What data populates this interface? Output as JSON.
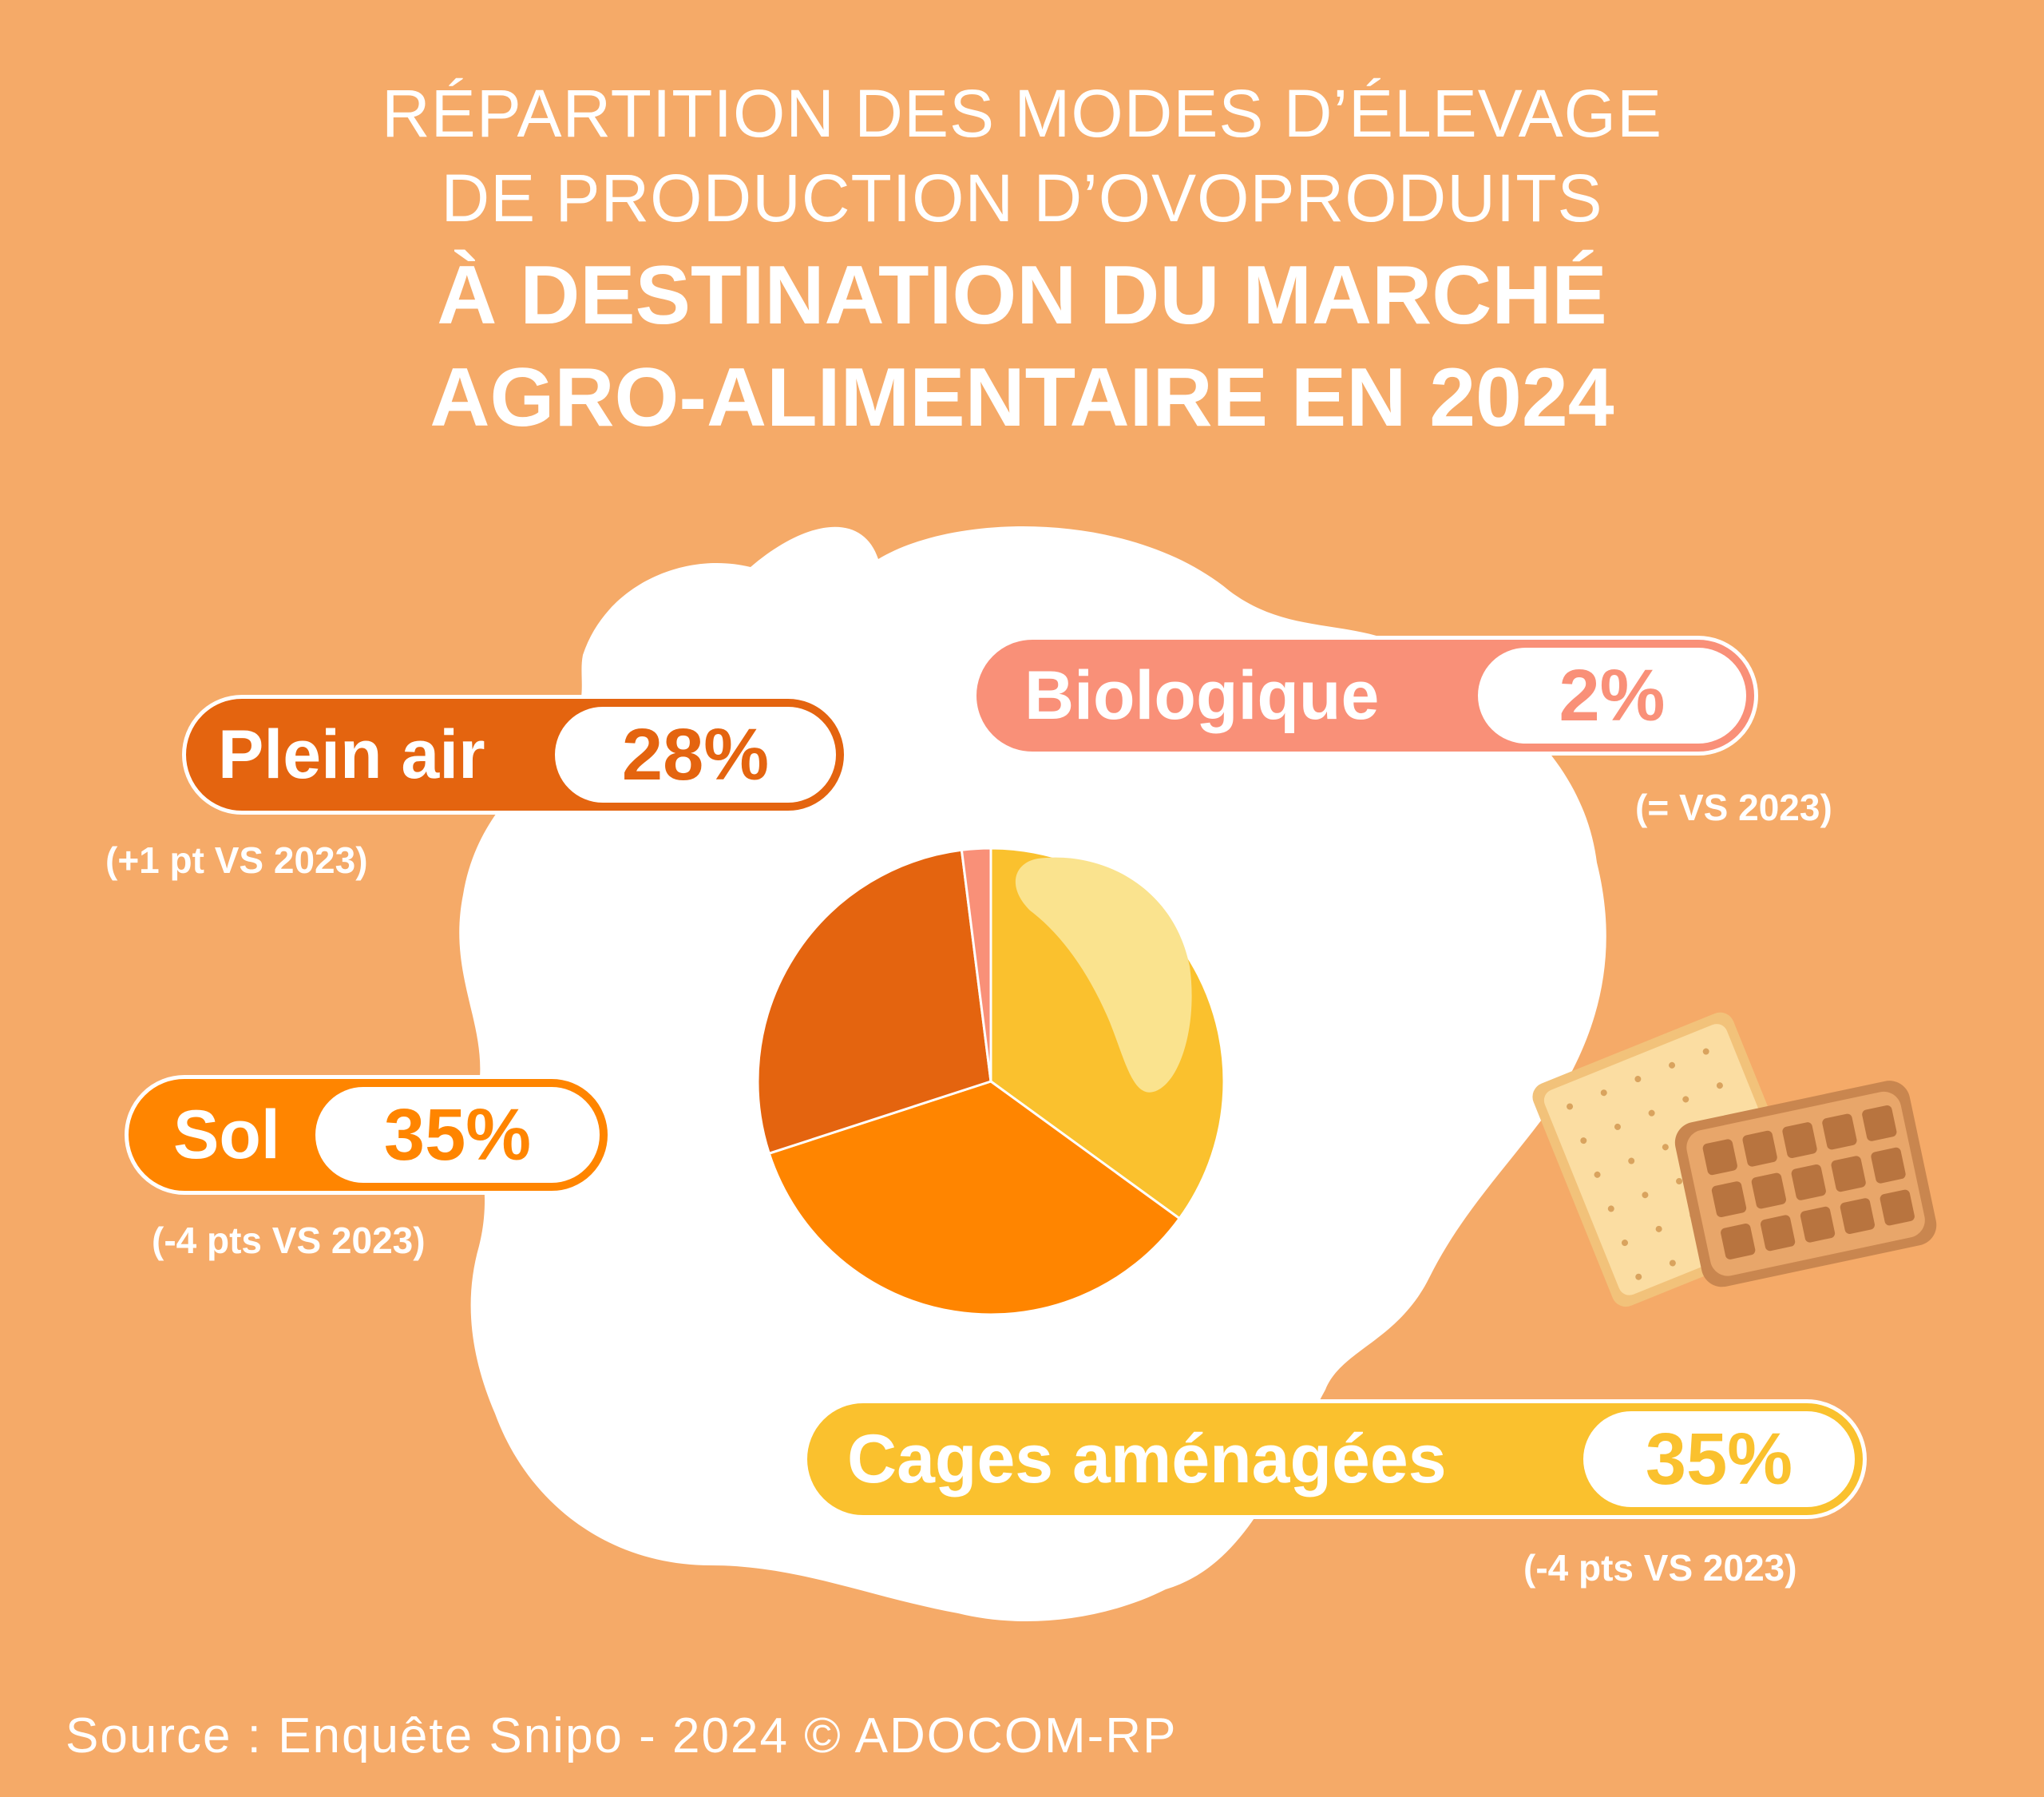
{
  "title": {
    "line1": "RÉPARTITION DES MODES D’ÉLEVAGE",
    "line2": "DE PRODUCTION D’OVOPRODUITS",
    "line3": "À DESTINATION DU MARCHÉ",
    "line4": "AGRO-ALIMENTAIRE EN 2024"
  },
  "colors": {
    "background": "#F5AA68",
    "egg_white": "#FFFFFF",
    "cages": "#FAC12E",
    "sol": "#FF8500",
    "plein_air": "#E4640F",
    "bio": "#F99078",
    "yolk_highlight": "#FAE38E"
  },
  "chart_data": {
    "type": "pie",
    "title": "",
    "slices": [
      {
        "name": "Cages aménagées",
        "value": 35,
        "label": "35%",
        "delta": "(-4 pts VS 2023)",
        "color": "#FAC12E"
      },
      {
        "name": "Sol",
        "value": 35,
        "label": "35%",
        "delta": "(-4 pts VS 2023)",
        "color": "#FF8500"
      },
      {
        "name": "Plein air",
        "value": 28,
        "label": "28%",
        "delta": "(+1 pt VS 2023)",
        "color": "#E4640F"
      },
      {
        "name": "Biologique",
        "value": 2,
        "label": "2%",
        "delta": "(= VS 2023)",
        "color": "#F99078"
      }
    ],
    "start": "12 o'clock",
    "direction": "clockwise"
  },
  "labels": {
    "plein_air": {
      "name": "Plein air",
      "value": "28%",
      "delta": "(+1 pt VS 2023)"
    },
    "bio": {
      "name": "Biologique",
      "value": "2%",
      "delta": "(= VS 2023)"
    },
    "sol": {
      "name": "Sol",
      "value": "35%",
      "delta": "(-4 pts VS 2023)"
    },
    "cages": {
      "name": "Cages aménagées",
      "value": "35%",
      "delta": "(-4 pts VS 2023)"
    }
  },
  "icons": {
    "illustration": "biscuit-and-waffle-icon"
  },
  "source": "Source : Enquête Snipo - 2024  © ADOCOM-RP"
}
